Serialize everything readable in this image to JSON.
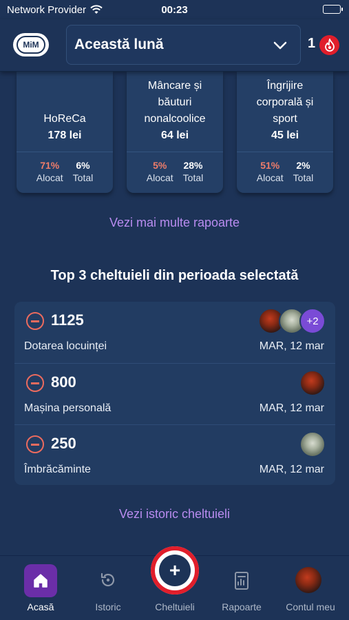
{
  "status_bar": {
    "carrier": "Network Provider",
    "time": "00:23"
  },
  "header": {
    "logo_text": "MiM",
    "period": "Această lună",
    "streak_count": "1"
  },
  "categories": [
    {
      "name": "HoReCa",
      "amount": "178 lei",
      "allocated": "71%",
      "allocated_label": "Alocat",
      "total": "6%",
      "total_label": "Total"
    },
    {
      "name": "Mâncare și băuturi nonalcoolice",
      "amount": "64 lei",
      "allocated": "5%",
      "allocated_label": "Alocat",
      "total": "28%",
      "total_label": "Total"
    },
    {
      "name": "Îngrijire corporală și sport",
      "amount": "45 lei",
      "allocated": "51%",
      "allocated_label": "Alocat",
      "total": "2%",
      "total_label": "Total"
    }
  ],
  "more_reports_link": "Vezi mai multe rapoarte",
  "top_expenses": {
    "title": "Top 3 cheltuieli din perioada selectată",
    "items": [
      {
        "amount": "1125",
        "category": "Dotarea locuinței",
        "date": "MAR, 12 mar",
        "extra_participants": "+2"
      },
      {
        "amount": "800",
        "category": "Mașina personală",
        "date": "MAR, 12 mar"
      },
      {
        "amount": "250",
        "category": "Îmbrăcăminte",
        "date": "MAR, 12 mar"
      }
    ]
  },
  "history_link": "Vezi istoric cheltuieli",
  "nav": {
    "home": "Acasă",
    "history": "Istoric",
    "expenses": "Cheltuieli",
    "reports": "Rapoarte",
    "account": "Contul meu"
  },
  "colors": {
    "accent": "#b98cf0",
    "danger": "#e01e2b",
    "background": "#1d3357",
    "active_tab": "#6b2ea8"
  }
}
